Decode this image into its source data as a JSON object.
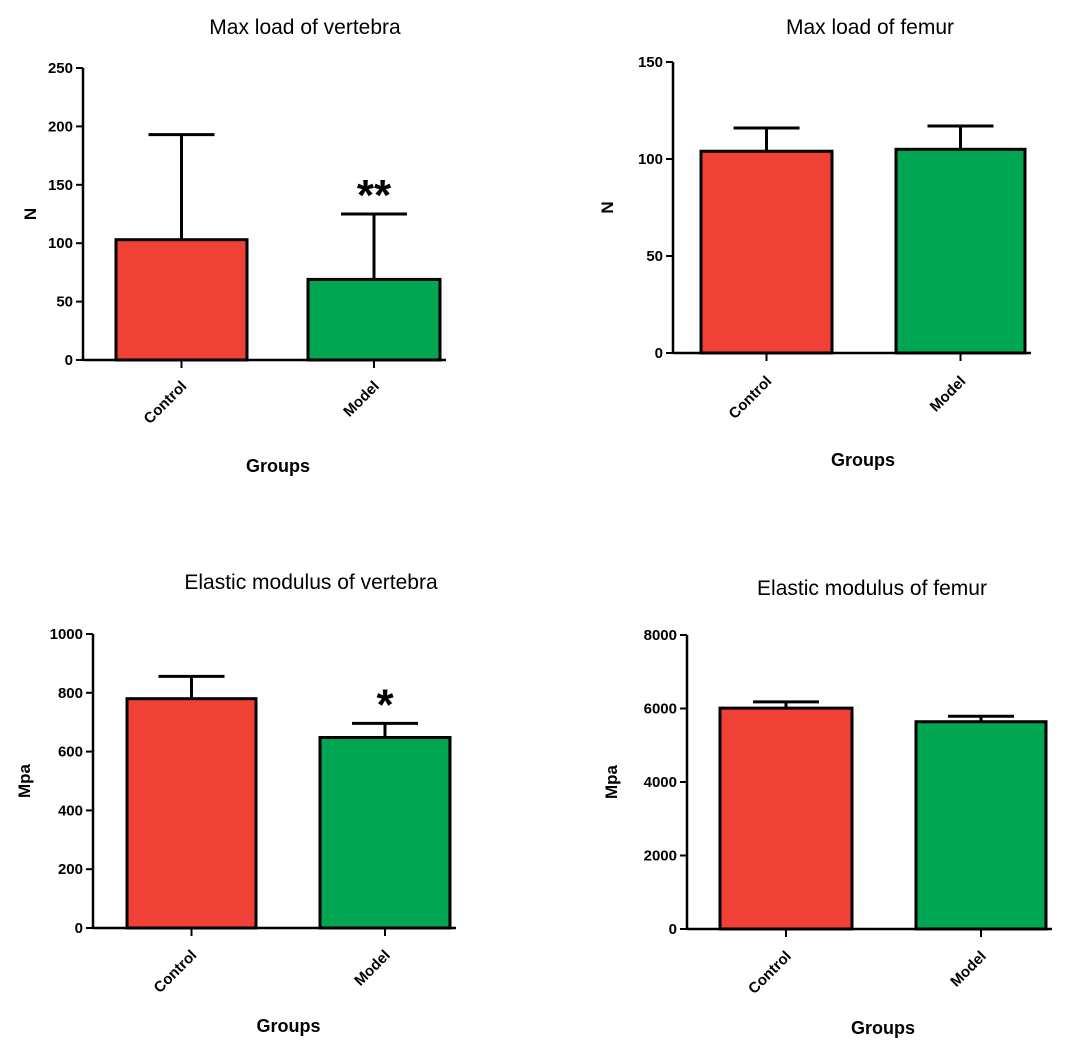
{
  "chart_data": [
    {
      "type": "bar",
      "title": "Max load of vertebra",
      "xlabel": "Groups",
      "ylabel": "N",
      "ylim": [
        0,
        250
      ],
      "yticks": [
        "0",
        "50",
        "100",
        "150",
        "200",
        "250"
      ],
      "categories": [
        "Control",
        "Model"
      ],
      "values": [
        103,
        69
      ],
      "errors": [
        90,
        56
      ],
      "annotations": [
        "",
        "**"
      ],
      "colors": [
        "#EF4136",
        "#00A651"
      ]
    },
    {
      "type": "bar",
      "title": "Max load of femur",
      "xlabel": "Groups",
      "ylabel": "N",
      "ylim": [
        0,
        150
      ],
      "yticks": [
        "0",
        "50",
        "100",
        "150"
      ],
      "categories": [
        "Control",
        "Model"
      ],
      "values": [
        104,
        105
      ],
      "errors": [
        12,
        12
      ],
      "annotations": [
        "",
        ""
      ],
      "colors": [
        "#EF4136",
        "#00A651"
      ]
    },
    {
      "type": "bar",
      "title": "Elastic modulus of vertebra",
      "xlabel": "Groups",
      "ylabel": "Mpa",
      "ylim": [
        0,
        1000
      ],
      "yticks": [
        "0",
        "200",
        "400",
        "600",
        "800",
        "1000"
      ],
      "categories": [
        "Control",
        "Model"
      ],
      "values": [
        780,
        648
      ],
      "errors": [
        76,
        48
      ],
      "annotations": [
        "",
        "*"
      ],
      "colors": [
        "#EF4136",
        "#00A651"
      ]
    },
    {
      "type": "bar",
      "title": "Elastic modulus of femur",
      "xlabel": "Groups",
      "ylabel": "Mpa",
      "ylim": [
        0,
        8000
      ],
      "yticks": [
        "0",
        "2000",
        "4000",
        "6000",
        "8000"
      ],
      "categories": [
        "Control",
        "Model"
      ],
      "values": [
        6010,
        5640
      ],
      "errors": [
        170,
        150
      ],
      "annotations": [
        "",
        ""
      ],
      "colors": [
        "#EF4136",
        "#00A651"
      ]
    }
  ]
}
